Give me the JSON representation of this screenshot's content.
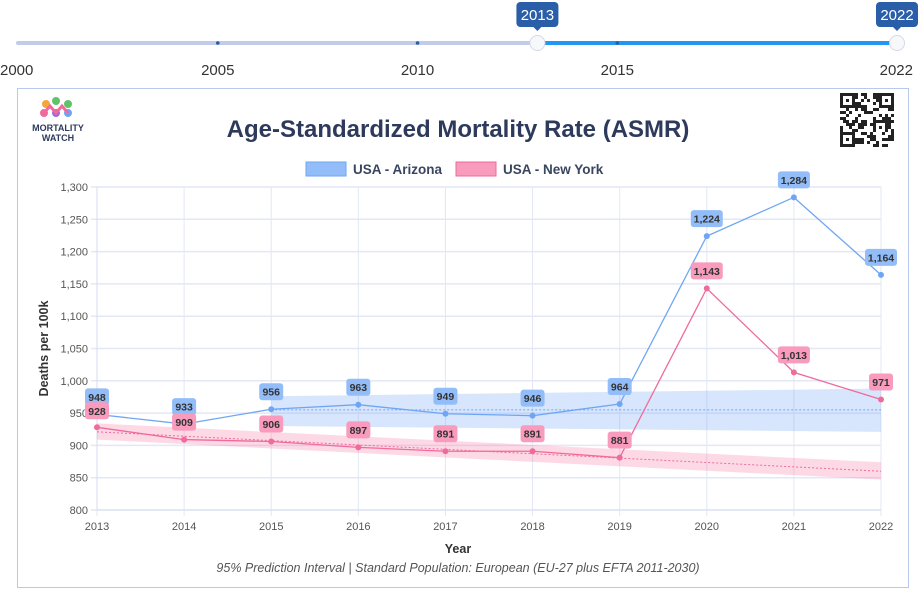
{
  "slider": {
    "min": 2000,
    "max": 2022,
    "range_start": 2013,
    "range_end": 2022,
    "start_label": "2013",
    "end_label": "2022",
    "ticks": [
      "2000",
      "2005",
      "2010",
      "2015",
      "2022"
    ],
    "tick_values": [
      2000,
      2005,
      2010,
      2015,
      2022
    ],
    "colors": {
      "inactive": "#c2cbe8",
      "active": "#2196f3",
      "tooltip": "#2a5ea8"
    }
  },
  "logo": {
    "line1": "MORTALITY",
    "line2": "WATCH"
  },
  "chart_data": {
    "type": "line",
    "title": "Age-Standardized Mortality Rate (ASMR)",
    "xlabel": "Year",
    "ylabel": "Deaths per 100k",
    "footnote": "95% Prediction Interval | Standard Population: European (EU-27 plus EFTA 2011-2030)",
    "x": [
      2013,
      2014,
      2015,
      2016,
      2017,
      2018,
      2019,
      2020,
      2021,
      2022
    ],
    "x_tick_labels": [
      "2013",
      "2014",
      "2015",
      "2016",
      "2017",
      "2018",
      "2019",
      "2020",
      "2021",
      "2022"
    ],
    "ylim": [
      800,
      1300
    ],
    "y_ticks": [
      800,
      850,
      900,
      950,
      1000,
      1050,
      1100,
      1150,
      1200,
      1250,
      1300
    ],
    "y_tick_labels": [
      "800",
      "850",
      "900",
      "950",
      "1,000",
      "1,050",
      "1,100",
      "1,150",
      "1,200",
      "1,250",
      "1,300"
    ],
    "grid": true,
    "legend_position": "top-center",
    "series": [
      {
        "name": "USA - Arizona",
        "color": "#6ea6f5",
        "label_bg": "#93bdf8",
        "values": [
          948,
          933,
          956,
          963,
          949,
          946,
          964,
          1224,
          1284,
          1164
        ],
        "labels": [
          "948",
          "933",
          "956",
          "963",
          "949",
          "946",
          "964",
          "1,224",
          "1,284",
          "1,164"
        ],
        "baseline": {
          "x": [
            2015,
            2022
          ],
          "values": [
            955,
            955
          ]
        },
        "interval": {
          "x": [
            2015,
            2022
          ],
          "lower": [
            930,
            921
          ],
          "upper": [
            976,
            988
          ]
        }
      },
      {
        "name": "USA - New York",
        "color": "#f06a9b",
        "label_bg": "#f89bbd",
        "values": [
          928,
          909,
          906,
          897,
          891,
          891,
          881,
          1143,
          1013,
          971
        ],
        "labels": [
          "928",
          "909",
          "906",
          "897",
          "891",
          "891",
          "881",
          "1,143",
          "1,013",
          "971"
        ],
        "baseline": {
          "x": [
            2013,
            2022
          ],
          "values": [
            921,
            860
          ]
        },
        "interval": {
          "x": [
            2013,
            2022
          ],
          "lower": [
            909,
            847
          ],
          "upper": [
            934,
            874
          ]
        }
      }
    ]
  }
}
